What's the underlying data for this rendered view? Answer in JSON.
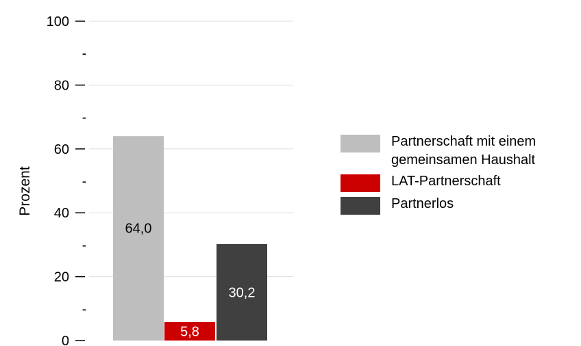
{
  "chart_data": {
    "type": "bar",
    "ylabel": "Prozent",
    "ylim": [
      0,
      100
    ],
    "yticks_major": [
      0,
      20,
      40,
      60,
      80,
      100
    ],
    "yticks_minor": [
      10,
      30,
      50,
      70,
      90
    ],
    "ytick_labels": [
      "0",
      "20",
      "40",
      "60",
      "80",
      "100"
    ],
    "minor_tick_label": "-",
    "grid": true,
    "legend_position": "right",
    "bars": [
      {
        "name": "Partnerschaft mit einem gemeinsamen Haushalt",
        "value": 64.0,
        "label": "64,0",
        "color": "#bebebe",
        "label_color": "#000000"
      },
      {
        "name": "LAT-Partnerschaft",
        "value": 5.8,
        "label": "5,8",
        "color": "#cc0000",
        "label_color": "#ffffff"
      },
      {
        "name": "Partnerlos",
        "value": 30.2,
        "label": "30,2",
        "color": "#404040",
        "label_color": "#ffffff"
      }
    ],
    "grid_color": "#dddddd"
  }
}
